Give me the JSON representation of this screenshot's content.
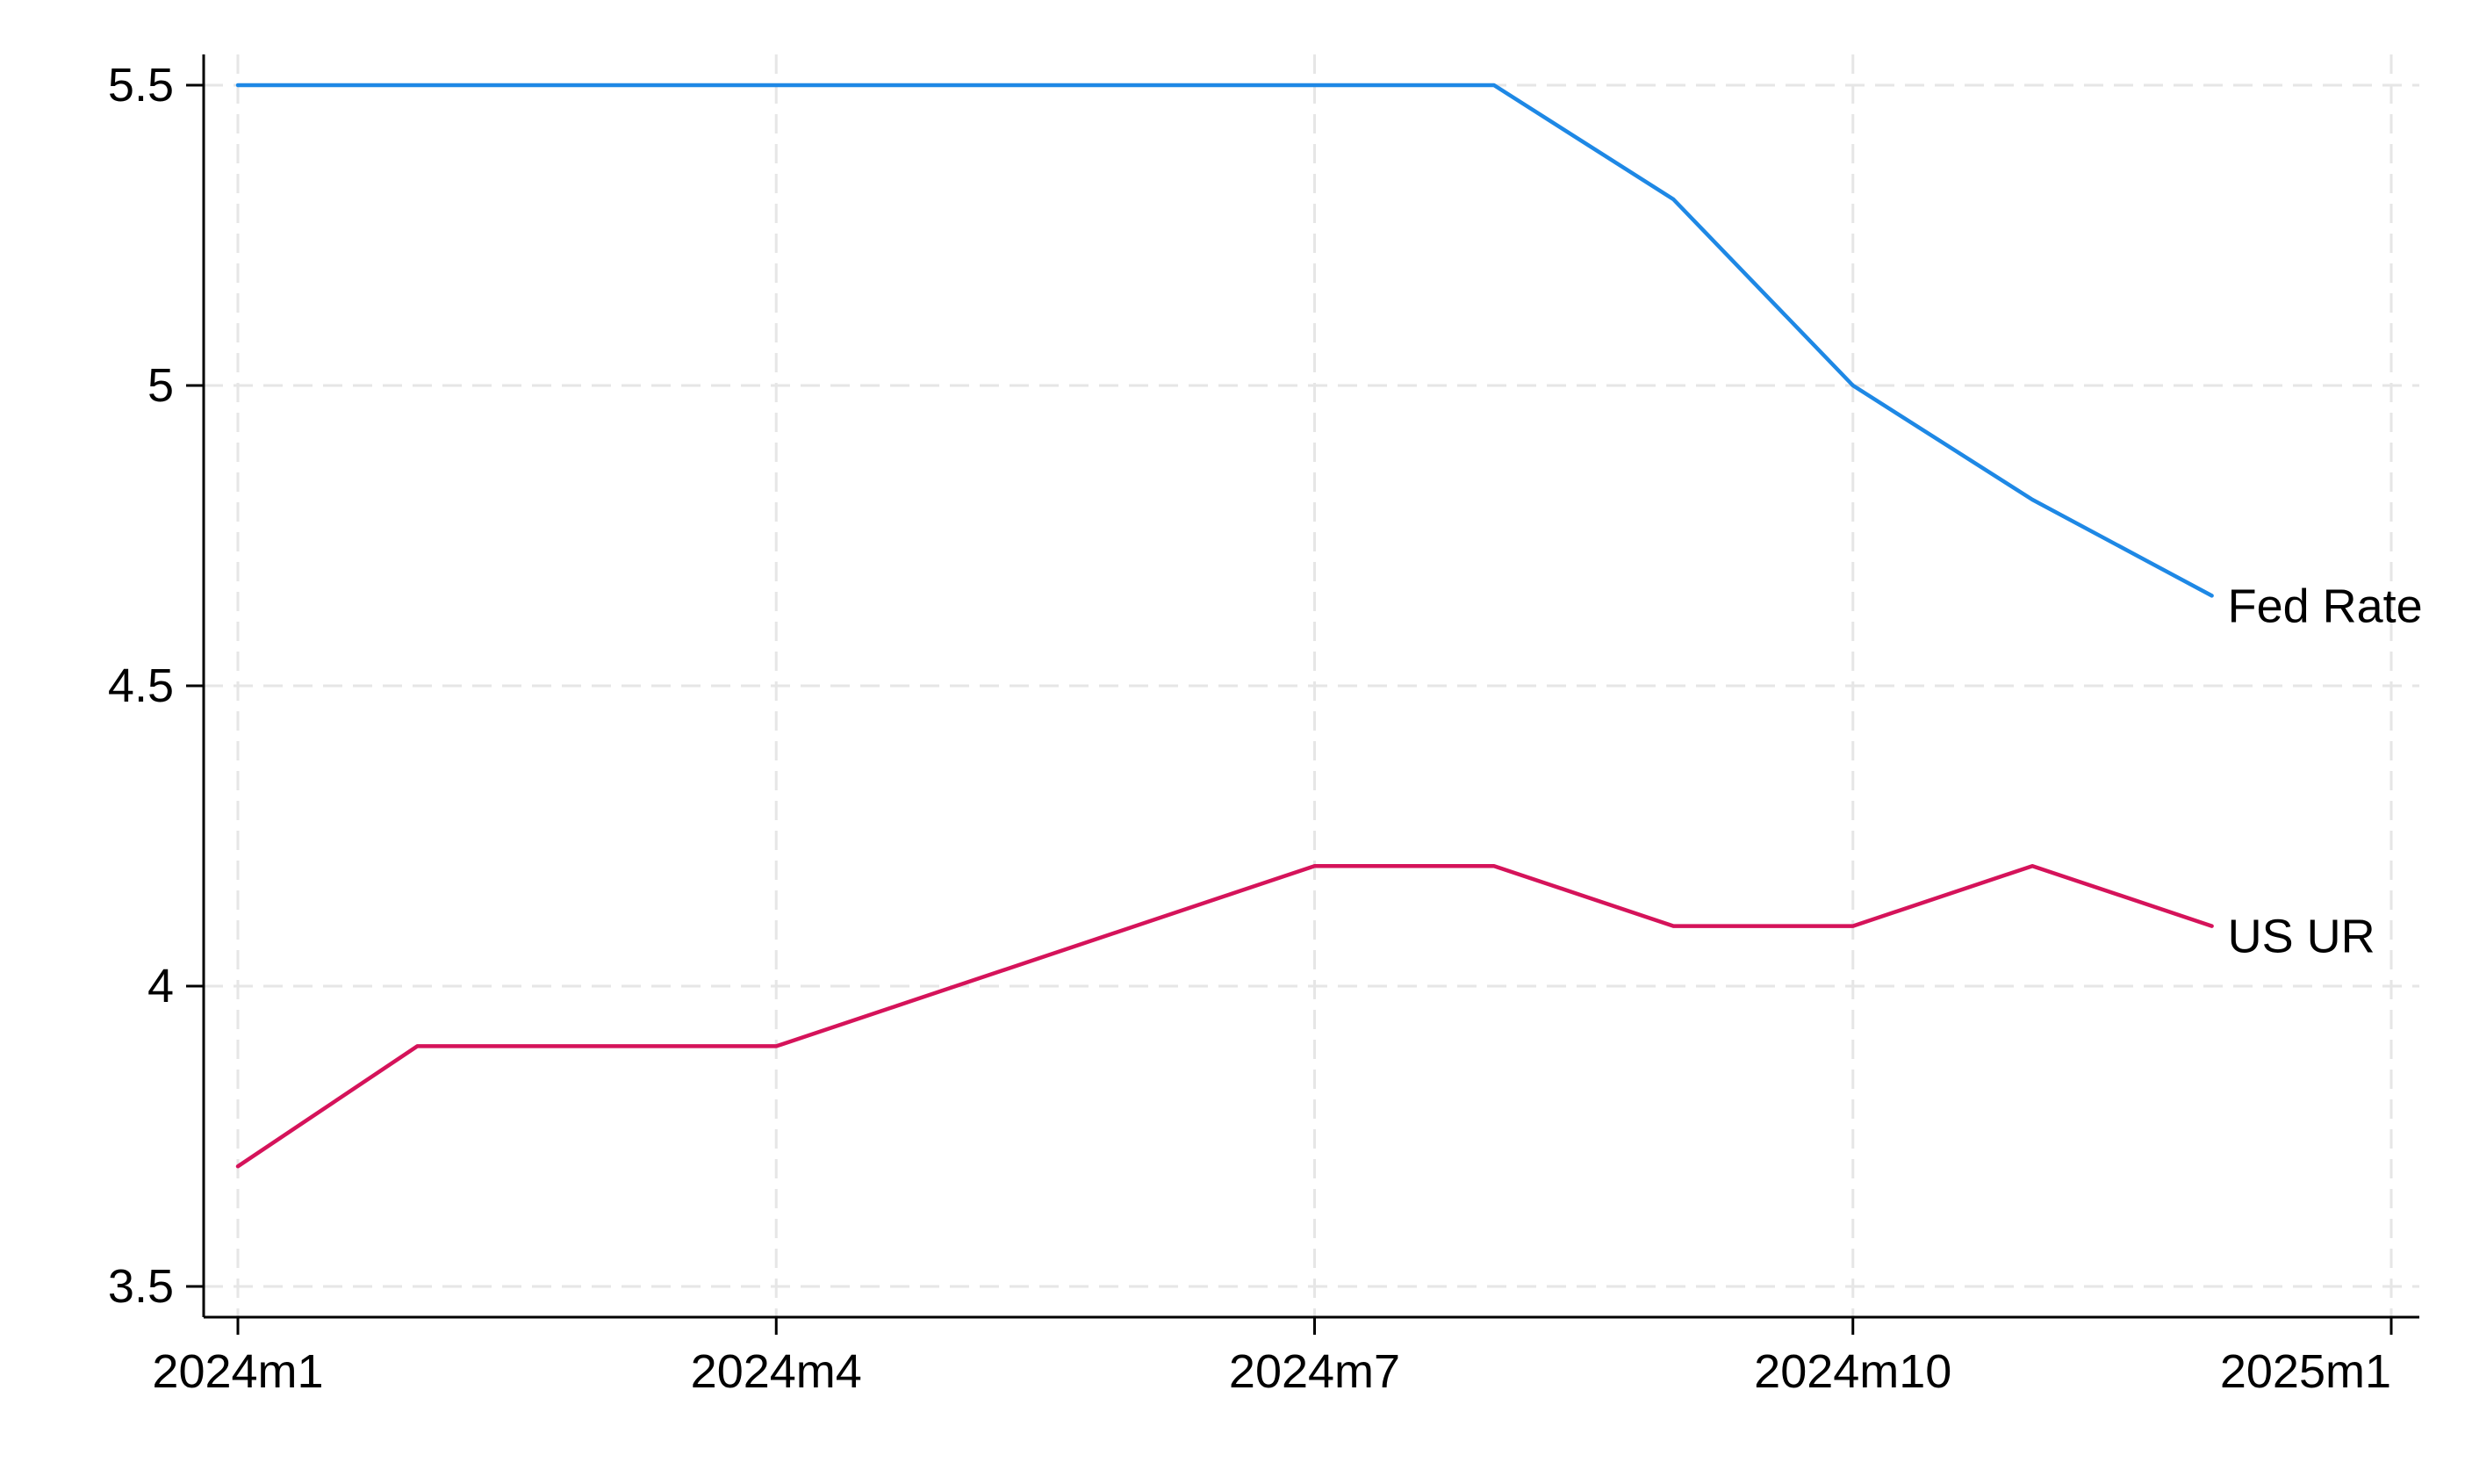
{
  "chart_data": {
    "type": "line",
    "x": [
      "2024m1",
      "2024m2",
      "2024m3",
      "2024m4",
      "2024m5",
      "2024m6",
      "2024m7",
      "2024m8",
      "2024m9",
      "2024m10",
      "2024m11",
      "2024m12"
    ],
    "series": [
      {
        "name": "Fed Rate",
        "color": "#1e88e5",
        "values": [
          5.5,
          5.5,
          5.5,
          5.5,
          5.5,
          5.5,
          5.5,
          5.5,
          5.31,
          5.0,
          4.81,
          4.65
        ]
      },
      {
        "name": "US UR",
        "color": "#d5135a",
        "values": [
          3.7,
          3.9,
          3.9,
          3.9,
          4.0,
          4.1,
          4.2,
          4.2,
          4.1,
          4.1,
          4.2,
          4.1
        ]
      }
    ],
    "x_ticks": [
      "2024m1",
      "2024m4",
      "2024m7",
      "2024m10",
      "2025m1"
    ],
    "x_range": [
      "2024m1",
      "2025m1"
    ],
    "y_ticks": [
      3.5,
      4,
      4.5,
      5,
      5.5
    ],
    "y_tick_labels": [
      "3.5",
      "4",
      "4.5",
      "5",
      "5.5"
    ],
    "ylim": [
      3.5,
      5.5
    ],
    "title": "",
    "xlabel": "",
    "ylabel": "",
    "grid": true,
    "grid_style": "dashed",
    "legend": "labels at line ends"
  }
}
